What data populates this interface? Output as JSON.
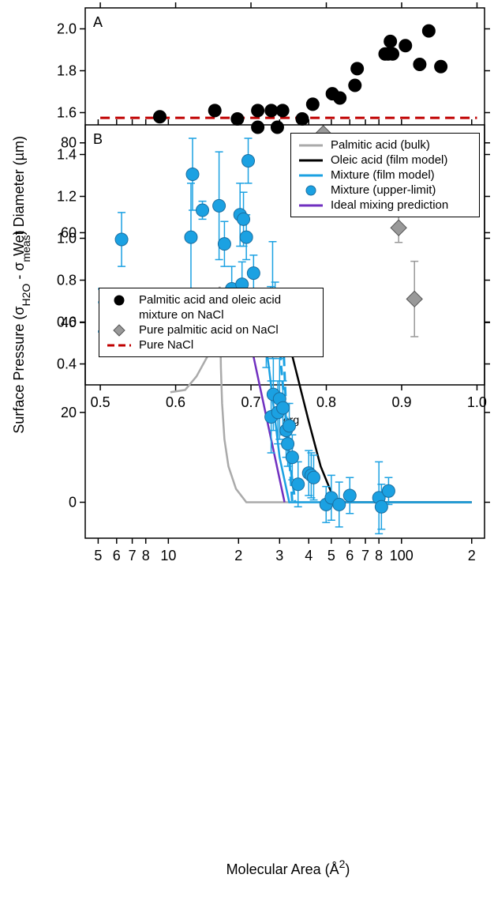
{
  "chart_data": [
    {
      "type": "scatter",
      "panel_label": "A",
      "y_label": "Wet Diameter (µm)",
      "x_label": [
        {
          "text": "ε"
        },
        {
          "text": "org",
          "sub": true
        }
      ],
      "xlim": [
        0.48,
        1.01
      ],
      "ylim": [
        0.3,
        2.1
      ],
      "xticks": [
        0.5,
        0.6,
        0.7,
        0.8,
        0.9,
        {
          "value": 1,
          "label": "1.0"
        }
      ],
      "yticks": [
        0.4,
        0.6,
        0.8,
        {
          "value": 1,
          "label": "1.0"
        },
        1.2,
        1.4,
        1.6,
        1.8,
        {
          "value": 2,
          "label": "2.0"
        }
      ],
      "series": [
        {
          "name": "Palmitic acid and oleic acid mixture on NaCl",
          "color": "#000000",
          "marker": "circle",
          "x": [
            0.579,
            0.652,
            0.682,
            0.709,
            0.709,
            0.727,
            0.735,
            0.742,
            0.768,
            0.782,
            0.808,
            0.818,
            0.838,
            0.841,
            0.878,
            0.882,
            0.885,
            0.888,
            0.905,
            0.924,
            0.936,
            0.952
          ],
          "values": [
            1.58,
            1.61,
            1.57,
            1.61,
            1.53,
            1.61,
            1.53,
            1.61,
            1.57,
            1.64,
            1.69,
            1.67,
            1.73,
            1.81,
            1.88,
            1.88,
            1.94,
            1.88,
            1.92,
            1.83,
            1.99,
            1.82
          ]
        },
        {
          "name": "Pure palmitic acid on NaCl",
          "color": "#999999",
          "marker": "diamond",
          "x": [
            0.796,
            0.896,
            0.917
          ],
          "values": [
            1.5,
            1.05,
            0.71
          ],
          "err": [
            0,
            0.07,
            0.18
          ]
        },
        {
          "name": "Pure NaCl",
          "color": "#c00000",
          "style": "dashed",
          "x": [
            0.5,
            1.0
          ],
          "values": [
            1.575,
            1.575
          ]
        }
      ]
    },
    {
      "type": "line",
      "panel_label": "B",
      "log_x": true,
      "y_label": [
        {
          "text": "Surface Pressure (σ"
        },
        {
          "text": "H2O",
          "sub": true
        },
        {
          "text": " - σ"
        },
        {
          "text": "meas",
          "sub": true
        },
        {
          "text": ")"
        }
      ],
      "x_label": [
        {
          "text": "Molecular Area (Å"
        },
        {
          "text": "2",
          "sup": true
        },
        {
          "text": ")"
        }
      ],
      "xlim": [
        4.4,
        227
      ],
      "ylim": [
        -8,
        84
      ],
      "xticks": [
        5,
        6,
        7,
        8,
        10,
        {
          "value": 20,
          "label": "2"
        },
        {
          "value": 30,
          "label": "3"
        },
        {
          "value": 40,
          "label": "4"
        },
        {
          "value": 50,
          "label": "5"
        },
        {
          "value": 60,
          "label": "6"
        },
        {
          "value": 70,
          "label": "7"
        },
        {
          "value": 80,
          "label": "8"
        },
        100,
        {
          "value": 200,
          "label": "2"
        }
      ],
      "yticks": [
        0,
        20,
        40,
        60,
        80
      ],
      "series": [
        {
          "name": "Palmitic acid (bulk)",
          "color": "#aaaaaa",
          "style": "solid",
          "x": [
            10.2,
            11.8,
            13.2,
            14.9,
            15.7,
            16.2,
            16.6,
            16.8,
            17.0,
            17.4,
            18.1,
            19.5,
            21.6,
            200
          ],
          "values": [
            24.5,
            25,
            28,
            33,
            40,
            44,
            48,
            30,
            22,
            14,
            8,
            3,
            0,
            0
          ]
        },
        {
          "name": "Oleic acid (film model)",
          "color": "#000000",
          "style": "solid",
          "x": [
            5,
            32,
            35,
            40,
            45,
            52,
            200
          ],
          "values": [
            38,
            38,
            30,
            18,
            8,
            0,
            0
          ]
        },
        {
          "name": "Mixture (film model)",
          "color": "#1ba1e2",
          "style": "solid",
          "x": [
            5,
            24.7,
            27,
            30,
            33,
            200
          ],
          "values": [
            44.5,
            44.5,
            30,
            10,
            0,
            0
          ]
        },
        {
          "color": "#1ba1e2",
          "style": "dashed",
          "x": [
            5,
            29,
            30.5,
            33,
            35
          ],
          "values": [
            47.5,
            47.5,
            30,
            10,
            0
          ]
        },
        {
          "color": "#1ba1e2",
          "style": "dashed",
          "x": [
            5,
            31,
            32,
            34
          ],
          "values": [
            38,
            38,
            20,
            0
          ]
        },
        {
          "name": "Mixture (upper-limit)",
          "color": "#1ba1e2",
          "marker": "circle",
          "x": [
            6.3,
            12.5,
            12.7,
            14.0,
            16.5,
            17.4,
            18.7,
            20.3,
            21.0,
            20.7,
            20.7,
            21.6,
            22.0,
            23.2,
            26.3,
            28.0,
            28.7,
            27.5,
            28.2,
            27.6,
            29.5,
            30.0,
            31.0,
            32.0,
            32.5,
            33.0,
            34.0,
            36.0,
            40.0,
            41.0,
            42.0,
            47.5,
            50.0,
            54.0,
            60.0,
            80.0,
            82.0,
            88.0
          ],
          "values": [
            58.5,
            59,
            73,
            65,
            66,
            57.5,
            47.5,
            64,
            63,
            44,
            48.5,
            59,
            76,
            51,
            38,
            45,
            43,
            43,
            24,
            19,
            20,
            23,
            21,
            16,
            13,
            17,
            10,
            4,
            6.5,
            6,
            5.5,
            -0.5,
            1,
            -0.5,
            1.5,
            1,
            -1,
            2.5
          ],
          "err": [
            6,
            12,
            8,
            2,
            12,
            5,
            5,
            7,
            6,
            4,
            5,
            5,
            5,
            4,
            8,
            13,
            6,
            5,
            8,
            8,
            7,
            9,
            6,
            6,
            5,
            5,
            5,
            5,
            5,
            5,
            5,
            4,
            5,
            5,
            4,
            8,
            5,
            3
          ]
        },
        {
          "name": "Ideal mixing prediction",
          "color": "#7030c0",
          "style": "solid",
          "x": [
            22,
            31.5
          ],
          "values": [
            38,
            0
          ]
        }
      ]
    }
  ]
}
